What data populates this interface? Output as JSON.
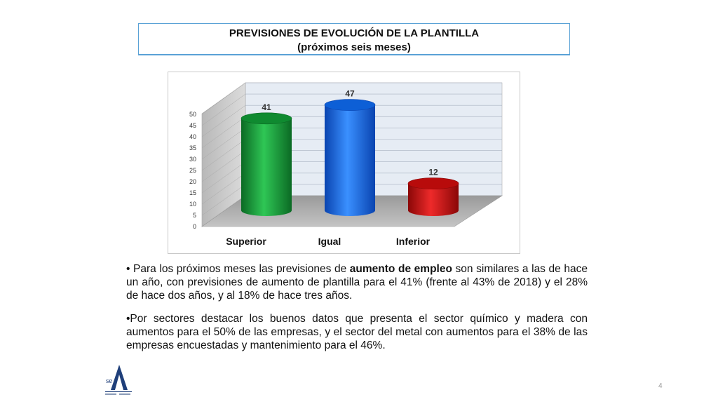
{
  "header": {
    "title_line1": "PREVISIONES DE EVOLUCIÓN DE LA PLANTILLA",
    "title_line2": "(próximos seis meses)"
  },
  "chart_data": {
    "type": "bar",
    "categories": [
      "Superior",
      "Igual",
      "Inferior"
    ],
    "values": [
      41,
      47,
      12
    ],
    "ylim": [
      0,
      50
    ],
    "yticks": [
      "0",
      "5",
      "10",
      "15",
      "20",
      "25",
      "30",
      "35",
      "40",
      "45",
      "50"
    ],
    "grid": true,
    "legend": "none",
    "colors": [
      "#17a03a",
      "#0d6ef0",
      "#d10d0d"
    ]
  },
  "body": {
    "p1_pre": "• Para los próximos meses las previsiones de ",
    "p1_bold": "aumento de empleo",
    "p1_post": " son similares a las de hace un año, con previsiones de aumento de plantilla para el 41% (frente al 43% de 2018) y el  28% de hace dos años, y al 18% de hace tres años.",
    "p2": "•Por sectores destacar los buenos datos que presenta el sector químico y madera con aumentos para el 50% de las empresas, y el sector del metal con aumentos para el 38% de las empresas encuestadas y mantenimiento para el 46%."
  },
  "footer": {
    "logo_icon": "sea-logo-icon",
    "page_number": "4"
  }
}
